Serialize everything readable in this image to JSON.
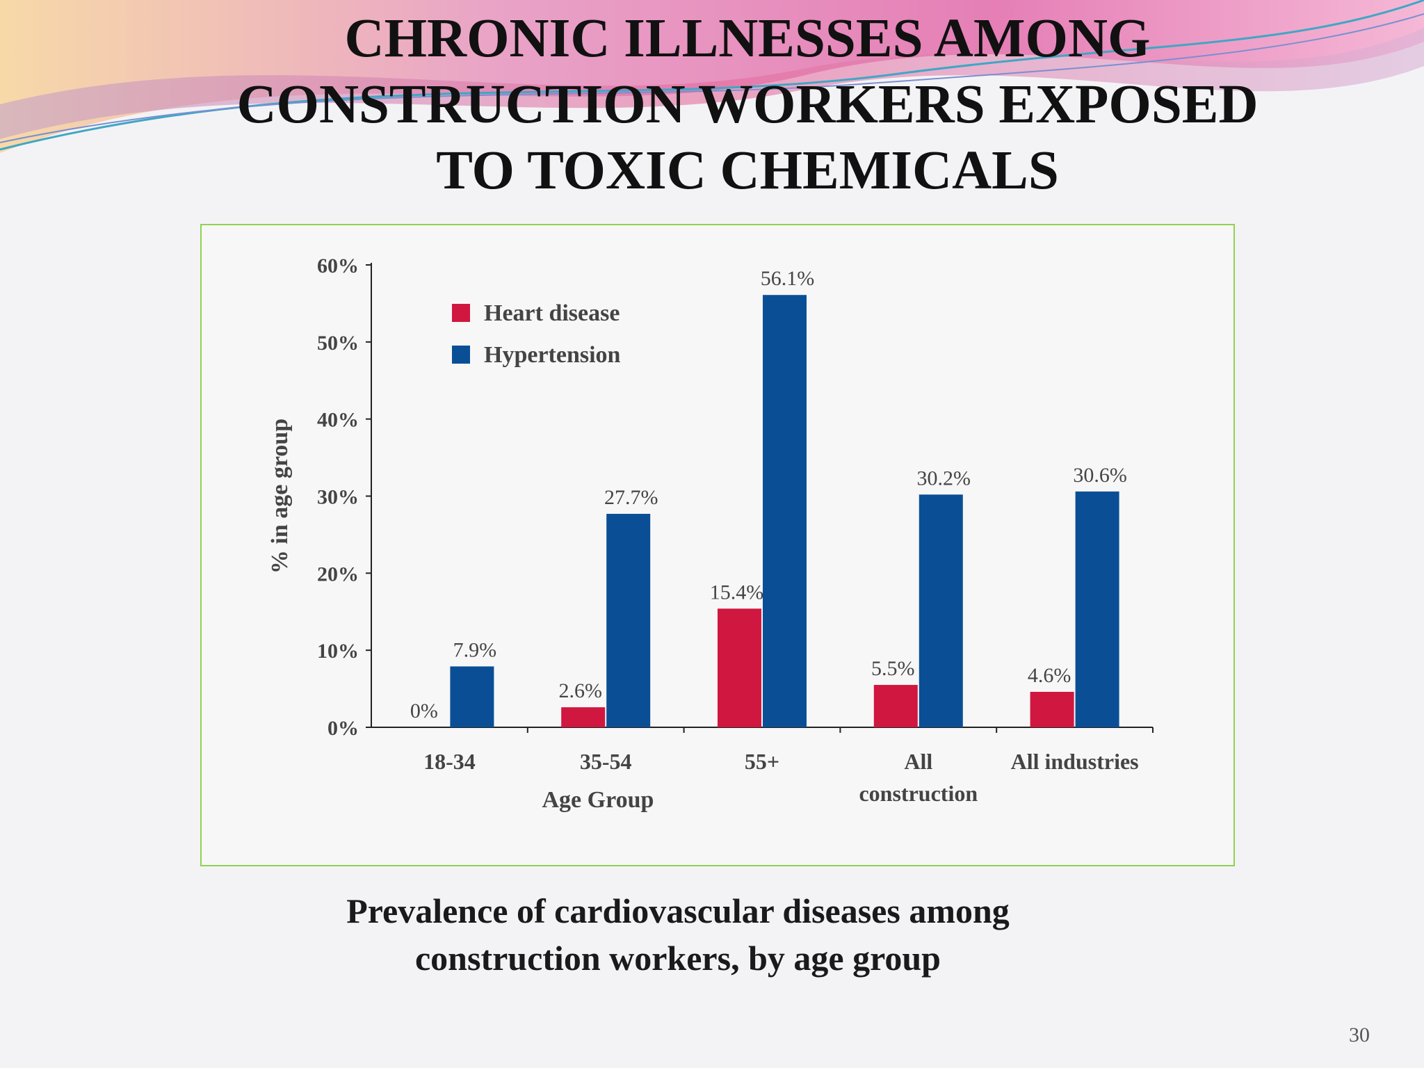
{
  "slide": {
    "title_lines": [
      "CHRONIC  ILLNESSES AMONG",
      "CONSTRUCTION WORKERS  EXPOSED",
      "TO TOXIC CHEMICALS"
    ],
    "caption_lines": [
      "Prevalence of cardiovascular diseases among",
      "construction workers, by age group"
    ],
    "page_number": "30",
    "frame_color": "#8fd14f"
  },
  "chart_data": {
    "type": "bar",
    "categories": [
      "18-34",
      "35-54",
      "55+",
      "All\nconstruction",
      "All industries"
    ],
    "series": [
      {
        "name": "Heart disease",
        "color": "#d0173f",
        "values": [
          0,
          2.6,
          15.4,
          5.5,
          4.6
        ],
        "labels": [
          "0%",
          "2.6%",
          "15.4%",
          "5.5%",
          "4.6%"
        ]
      },
      {
        "name": "Hypertension",
        "color": "#0a4f96",
        "values": [
          7.9,
          27.7,
          56.1,
          30.2,
          30.6
        ],
        "labels": [
          "7.9%",
          "27.7%",
          "56.1%",
          "30.2%",
          "30.6%"
        ]
      }
    ],
    "ylabel": "% in age group",
    "xlabel": "Age Group",
    "ylim": [
      0,
      60
    ],
    "yticks": [
      "0%",
      "10%",
      "20%",
      "30%",
      "40%",
      "50%",
      "60%"
    ],
    "grid": false,
    "legend_position": "top-left"
  }
}
